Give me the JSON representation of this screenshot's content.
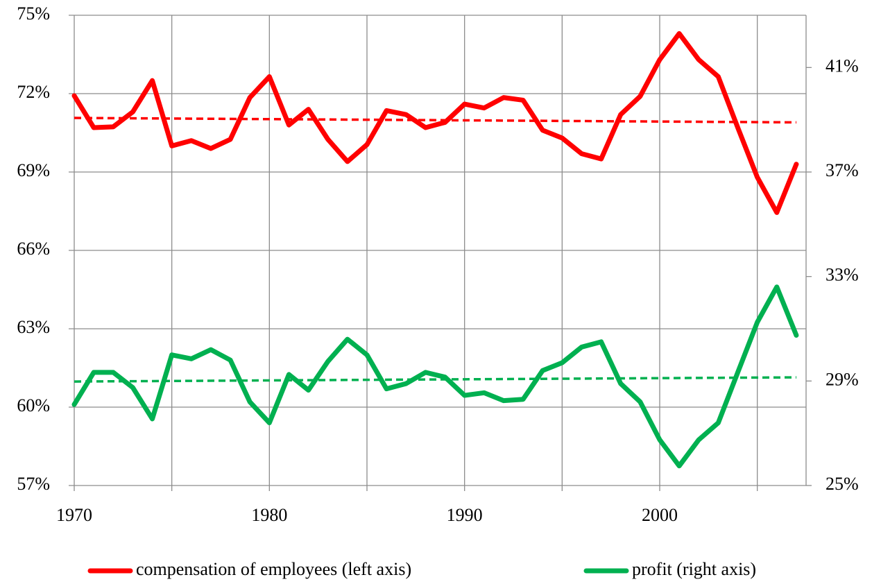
{
  "chart_data": {
    "type": "line",
    "x": [
      1970,
      1971,
      1972,
      1973,
      1974,
      1975,
      1976,
      1977,
      1978,
      1979,
      1980,
      1981,
      1982,
      1983,
      1984,
      1985,
      1986,
      1987,
      1988,
      1989,
      1990,
      1991,
      1992,
      1993,
      1994,
      1995,
      1996,
      1997,
      1998,
      1999,
      2000,
      2001,
      2002,
      2003,
      2004,
      2005,
      2006,
      2007
    ],
    "series": [
      {
        "name": "compensation of employees (left axis)",
        "color": "#ff0000",
        "axis": "y",
        "values": [
          71.92,
          70.7,
          70.73,
          71.3,
          72.5,
          70.0,
          70.2,
          69.9,
          70.25,
          71.85,
          72.65,
          70.8,
          71.4,
          70.25,
          69.4,
          70.05,
          71.35,
          71.2,
          70.7,
          70.9,
          71.6,
          71.45,
          71.85,
          71.75,
          70.6,
          70.3,
          69.7,
          69.5,
          71.2,
          71.9,
          73.3,
          74.3,
          73.3,
          72.65,
          70.7,
          68.8,
          67.45,
          69.3
        ],
        "trend": [
          71.07,
          70.9
        ]
      },
      {
        "name": "profit (right axis)",
        "color": "#00b050",
        "axis": "y2",
        "values": [
          28.1,
          29.33,
          29.33,
          28.75,
          27.55,
          30.0,
          29.85,
          30.2,
          29.8,
          28.2,
          27.4,
          29.25,
          28.65,
          29.75,
          30.6,
          30.0,
          28.7,
          28.9,
          29.33,
          29.15,
          28.45,
          28.55,
          28.25,
          28.3,
          29.4,
          29.7,
          30.3,
          30.5,
          28.9,
          28.2,
          26.75,
          25.75,
          26.75,
          27.4,
          29.33,
          31.25,
          32.6,
          30.75
        ],
        "trend": [
          28.98,
          29.14
        ]
      }
    ],
    "xlim": [
      1970,
      2007.5
    ],
    "xticks": [
      1970,
      1980,
      1990,
      2000
    ],
    "x_minor_ticks": [
      1975,
      1985,
      1995,
      2005
    ],
    "ylim": [
      57,
      75
    ],
    "yticks": [
      {
        "value": 57,
        "label": "57%"
      },
      {
        "value": 60,
        "label": "60%"
      },
      {
        "value": 63,
        "label": "63%"
      },
      {
        "value": 66,
        "label": "66%"
      },
      {
        "value": 69,
        "label": "69%"
      },
      {
        "value": 72,
        "label": "72%"
      },
      {
        "value": 75,
        "label": "75%"
      }
    ],
    "y2lim": [
      25,
      43
    ],
    "y2ticks": [
      {
        "value": 25,
        "label": "25%"
      },
      {
        "value": 29,
        "label": "29%"
      },
      {
        "value": 33,
        "label": "33%"
      },
      {
        "value": 37,
        "label": "37%"
      },
      {
        "value": 41,
        "label": "41%"
      }
    ],
    "grid": true,
    "legend": "bottom"
  }
}
